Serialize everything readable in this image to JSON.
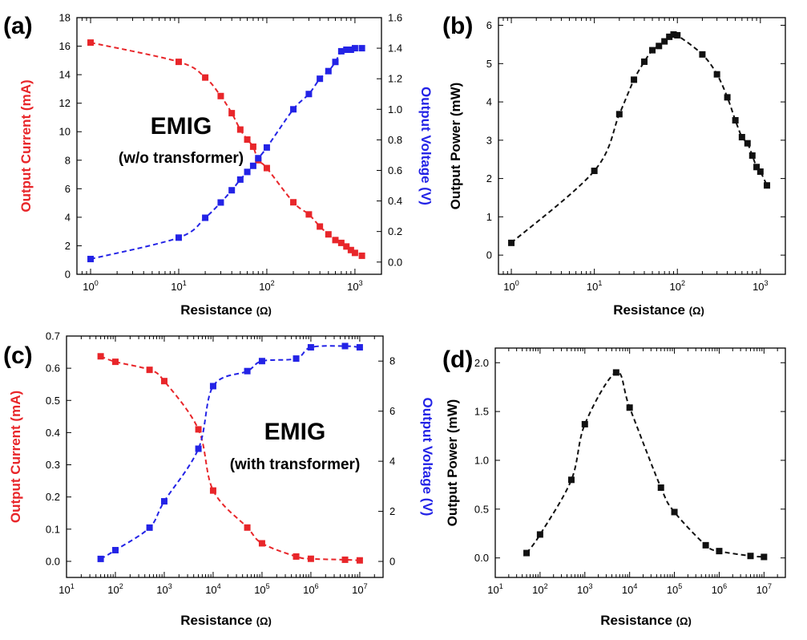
{
  "colors": {
    "red": "#e8262a",
    "blue": "#2323e6",
    "black": "#111111"
  },
  "chart_data": [
    {
      "panel": "(a)",
      "type": "scatter",
      "xlabel": "Resistance",
      "xunit": "(Ω)",
      "xscale": "log",
      "xlim": [
        0.7,
        2000
      ],
      "xticks": [
        1,
        10,
        100,
        1000
      ],
      "ylabel": "Output Current (mA)",
      "ylim": [
        0,
        18
      ],
      "yticks": [
        0,
        2,
        4,
        6,
        8,
        10,
        12,
        14,
        16,
        18
      ],
      "y2label": "Output Voltage (V)",
      "y2lim": [
        -0.08,
        1.6
      ],
      "y2ticks": [
        "0.0",
        "0.2",
        "0.4",
        "0.6",
        "0.8",
        "1.0",
        "1.2",
        "1.4",
        "1.6"
      ],
      "annotation": [
        "EMIG",
        "(w/o transformer)"
      ],
      "series": [
        {
          "axis": "y",
          "color": "red",
          "fit": true,
          "x": [
            1,
            10,
            20,
            30,
            40,
            50,
            60,
            70,
            80,
            100,
            200,
            300,
            400,
            500,
            600,
            700,
            800,
            900,
            1000,
            1200
          ],
          "y": [
            16.25,
            14.9,
            13.8,
            12.5,
            11.3,
            10.15,
            9.45,
            8.95,
            8.0,
            7.45,
            5.05,
            4.2,
            3.35,
            2.8,
            2.4,
            2.2,
            1.95,
            1.7,
            1.5,
            1.3
          ]
        },
        {
          "axis": "y2",
          "color": "blue",
          "fit": true,
          "x": [
            1,
            10,
            20,
            30,
            40,
            50,
            60,
            70,
            80,
            100,
            200,
            300,
            400,
            500,
            600,
            700,
            800,
            900,
            1000,
            1200
          ],
          "y": [
            0.02,
            0.16,
            0.29,
            0.39,
            0.47,
            0.54,
            0.59,
            0.63,
            0.68,
            0.75,
            1.0,
            1.1,
            1.2,
            1.25,
            1.31,
            1.38,
            1.39,
            1.39,
            1.4,
            1.4
          ]
        }
      ]
    },
    {
      "panel": "(b)",
      "type": "scatter",
      "xlabel": "Resistance",
      "xunit": "(Ω)",
      "xscale": "log",
      "xlim": [
        0.7,
        2000
      ],
      "xticks": [
        1,
        10,
        100,
        1000
      ],
      "ylabel": "Output Power (mW)",
      "ylim": [
        -0.5,
        6.2
      ],
      "yticks": [
        0,
        1,
        2,
        3,
        4,
        5,
        6
      ],
      "series": [
        {
          "axis": "y",
          "color": "black",
          "fit": true,
          "x": [
            1,
            10,
            20,
            30,
            40,
            50,
            60,
            70,
            80,
            90,
            100,
            200,
            300,
            400,
            500,
            600,
            700,
            800,
            900,
            1000,
            1200
          ],
          "y": [
            0.32,
            2.2,
            3.68,
            4.58,
            5.05,
            5.35,
            5.46,
            5.58,
            5.7,
            5.76,
            5.74,
            5.24,
            4.72,
            4.12,
            3.52,
            3.08,
            2.92,
            2.6,
            2.3,
            2.18,
            1.82
          ]
        }
      ]
    },
    {
      "panel": "(c)",
      "type": "scatter",
      "xlabel": "Resistance",
      "xunit": "(Ω)",
      "xscale": "log",
      "xlim": [
        10,
        30000000
      ],
      "xticks": [
        10,
        100,
        1000,
        10000,
        100000,
        1000000,
        10000000
      ],
      "ylabel": "Output Current (mA)",
      "ylim": [
        -0.05,
        0.7
      ],
      "yticks": [
        "0.0",
        "0.1",
        "0.2",
        "0.3",
        "0.4",
        "0.5",
        "0.6",
        "0.7"
      ],
      "y2label": "Output Voltage (V)",
      "y2lim": [
        -0.64,
        9.0
      ],
      "y2ticks": [
        "0",
        "2",
        "4",
        "6",
        "8"
      ],
      "annotation": [
        "EMIG",
        "(with transformer)"
      ],
      "series": [
        {
          "axis": "y",
          "color": "red",
          "fit": true,
          "x": [
            50,
            100,
            500,
            1000,
            5000,
            10000,
            50000,
            100000,
            500000,
            1000000,
            5000000,
            10000000
          ],
          "y": [
            0.637,
            0.62,
            0.595,
            0.56,
            0.41,
            0.22,
            0.105,
            0.056,
            0.015,
            0.008,
            0.005,
            0.003
          ]
        },
        {
          "axis": "y2",
          "color": "blue",
          "fit": true,
          "x": [
            50,
            100,
            500,
            1000,
            5000,
            10000,
            50000,
            100000,
            500000,
            1000000,
            5000000,
            10000000
          ],
          "y": [
            0.1,
            0.45,
            1.35,
            2.4,
            4.5,
            7.0,
            7.6,
            8.0,
            8.1,
            8.55,
            8.6,
            8.55
          ]
        }
      ]
    },
    {
      "panel": "(d)",
      "type": "scatter",
      "xlabel": "Resistance",
      "xunit": "(Ω)",
      "xscale": "log",
      "xlim": [
        10,
        30000000
      ],
      "xticks": [
        10,
        100,
        1000,
        10000,
        100000,
        1000000,
        10000000
      ],
      "ylabel": "Output Power (mW)",
      "ylim": [
        -0.2,
        2.15
      ],
      "yticks": [
        "0.0",
        "0.5",
        "1.0",
        "1.5",
        "2.0"
      ],
      "series": [
        {
          "axis": "y",
          "color": "black",
          "fit": true,
          "x": [
            50,
            100,
            500,
            1000,
            5000,
            10000,
            50000,
            100000,
            500000,
            1000000,
            5000000,
            10000000
          ],
          "y": [
            0.05,
            0.24,
            0.8,
            1.37,
            1.9,
            1.54,
            0.72,
            0.47,
            0.13,
            0.07,
            0.02,
            0.01
          ]
        }
      ]
    }
  ]
}
